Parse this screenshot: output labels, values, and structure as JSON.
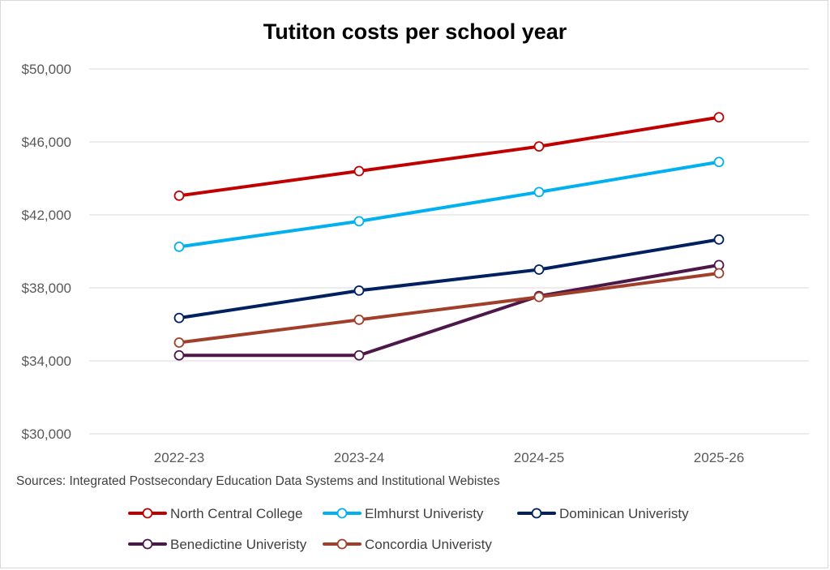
{
  "chart_data": {
    "type": "line",
    "title": "Tutiton costs per school year",
    "xlabel": "",
    "ylabel": "",
    "categories": [
      "2022-23",
      "2023-24",
      "2024-25",
      "2025-26"
    ],
    "ylim": [
      30000,
      50000
    ],
    "yticks": [
      30000,
      34000,
      38000,
      42000,
      46000,
      50000
    ],
    "ytick_labels": [
      "$30,000",
      "$34,000",
      "$38,000",
      "$42,000",
      "$46,000",
      "$50,000"
    ],
    "grid": true,
    "legend_position": "bottom",
    "series": [
      {
        "name": "North Central College",
        "color": "#c00000",
        "values": [
          43050,
          44400,
          45750,
          47350
        ]
      },
      {
        "name": "Elmhurst Univeristy",
        "color": "#00b0f0",
        "values": [
          40250,
          41650,
          43250,
          44900
        ]
      },
      {
        "name": "Dominican Univeristy",
        "color": "#002060",
        "values": [
          36350,
          37850,
          39000,
          40650
        ]
      },
      {
        "name": "Benedictine Univeristy",
        "color": "#4e1749",
        "values": [
          34300,
          34300,
          37550,
          39250
        ]
      },
      {
        "name": "Concordia Univeristy",
        "color": "#a0402a",
        "values": [
          35000,
          36250,
          37500,
          38800
        ]
      }
    ],
    "source_note": "Sources: Integrated Postsecondary Education Data Systems and Institutional Webistes"
  }
}
